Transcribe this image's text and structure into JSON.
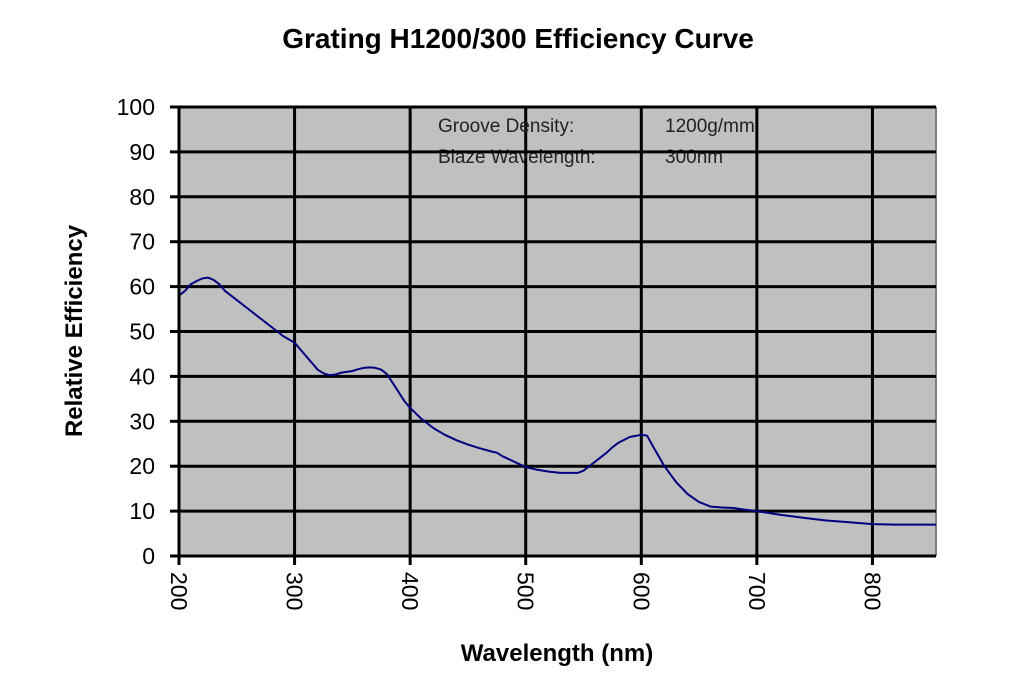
{
  "chart_data": {
    "type": "line",
    "title": "Grating H1200/300 Efficiency Curve",
    "xlabel": "Wavelength (nm)",
    "ylabel": "Relative Efficiency",
    "xlim": [
      200,
      855
    ],
    "ylim": [
      0,
      100
    ],
    "xticks": [
      200,
      300,
      400,
      500,
      600,
      700,
      800
    ],
    "yticks": [
      0,
      10,
      20,
      30,
      40,
      50,
      60,
      70,
      80,
      90,
      100
    ],
    "grid": true,
    "plot_background": "#c0c0c0",
    "series": [
      {
        "name": "Efficiency",
        "color": "#000080",
        "x": [
          200,
          205,
          210,
          215,
          220,
          225,
          230,
          235,
          240,
          250,
          260,
          270,
          280,
          290,
          300,
          305,
          310,
          315,
          320,
          325,
          330,
          335,
          340,
          345,
          350,
          355,
          360,
          365,
          370,
          375,
          380,
          385,
          390,
          395,
          400,
          410,
          420,
          430,
          440,
          450,
          460,
          470,
          475,
          480,
          490,
          500,
          510,
          520,
          530,
          540,
          545,
          550,
          555,
          560,
          570,
          575,
          580,
          590,
          600,
          605,
          610,
          620,
          630,
          640,
          650,
          660,
          670,
          680,
          690,
          700,
          720,
          740,
          760,
          780,
          800,
          820,
          855
        ],
        "y": [
          58,
          59,
          60.5,
          61.2,
          61.8,
          62,
          61.5,
          60.5,
          59,
          57,
          55,
          53,
          51,
          49,
          47.5,
          46,
          44.5,
          43,
          41.5,
          40.7,
          40.3,
          40.4,
          40.8,
          41,
          41.2,
          41.6,
          41.9,
          42,
          41.9,
          41.5,
          40.5,
          38.5,
          36.5,
          34.5,
          33,
          30.5,
          28.5,
          27,
          25.8,
          24.8,
          24,
          23.3,
          23,
          22.2,
          21,
          19.8,
          19.2,
          18.8,
          18.5,
          18.5,
          18.5,
          19,
          20,
          21,
          23,
          24.2,
          25.2,
          26.5,
          27,
          26.8,
          24.5,
          20,
          16.5,
          13.8,
          12,
          11,
          10.8,
          10.7,
          10.3,
          10,
          9.2,
          8.5,
          7.9,
          7.5,
          7.1,
          7,
          7
        ]
      }
    ],
    "annotations": [
      {
        "label": "Groove Density:",
        "value": "1200g/mm"
      },
      {
        "label": "Blaze Wavelength:",
        "value": "300nm"
      }
    ]
  }
}
